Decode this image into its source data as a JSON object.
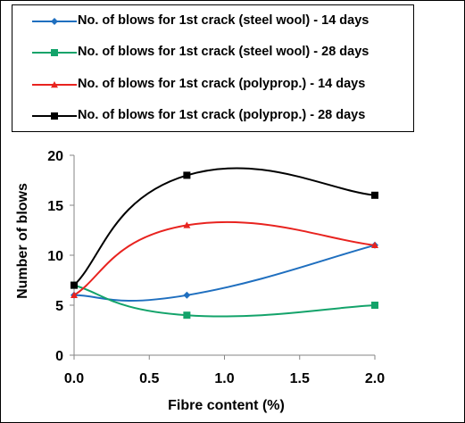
{
  "chart_data": {
    "type": "line",
    "title": "",
    "xlabel": "Fibre content (%)",
    "ylabel": "Number of blows",
    "xlim": [
      0,
      2
    ],
    "ylim": [
      0,
      20
    ],
    "x_ticks": [
      "0.0",
      "0.5",
      "1.0",
      "1.5",
      "2.0"
    ],
    "y_ticks": [
      "0",
      "5",
      "10",
      "15",
      "20"
    ],
    "grid": false,
    "legend_position": "top",
    "smooth": true,
    "series": [
      {
        "name": "No. of blows for 1st crack (steel wool) - 14 days",
        "color": "#1f6fbf",
        "marker": "diamond",
        "x": [
          0,
          0.75,
          2
        ],
        "y": [
          6,
          6,
          11
        ]
      },
      {
        "name": "No. of blows for 1st crack (steel wool) - 28 days",
        "color": "#13a36a",
        "marker": "square",
        "x": [
          0,
          0.75,
          2
        ],
        "y": [
          7,
          4,
          5
        ]
      },
      {
        "name": "No. of blows for 1st crack (polyprop.) - 14 days",
        "color": "#e8231f",
        "marker": "triangle",
        "x": [
          0,
          0.75,
          2
        ],
        "y": [
          6,
          13,
          11
        ]
      },
      {
        "name": "No. of blows for 1st crack (polyprop.) - 28 days",
        "color": "#000000",
        "marker": "square",
        "x": [
          0,
          0.75,
          2
        ],
        "y": [
          7,
          18,
          16
        ]
      }
    ]
  }
}
